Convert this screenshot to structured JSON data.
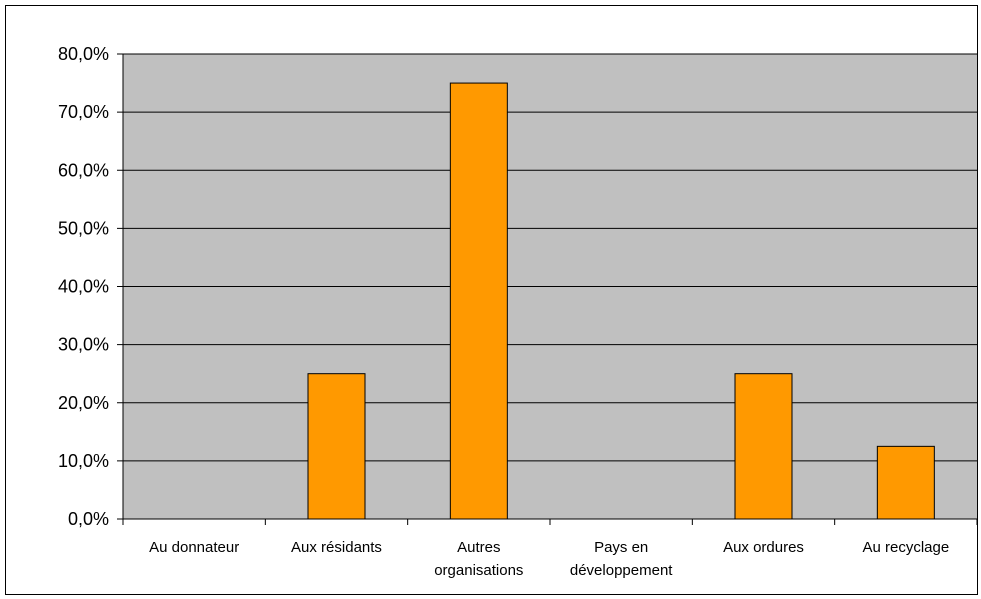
{
  "chart_data": {
    "type": "bar",
    "title": "",
    "xlabel": "",
    "ylabel": "",
    "ylim": [
      0,
      80
    ],
    "y_tick_step": 10,
    "y_tick_labels": [
      "0,0%",
      "10,0%",
      "20,0%",
      "30,0%",
      "40,0%",
      "50,0%",
      "60,0%",
      "70,0%",
      "80,0%"
    ],
    "categories": [
      [
        "Au donnateur"
      ],
      [
        "Aux résidants"
      ],
      [
        "Autres",
        "organisations"
      ],
      [
        "Pays en",
        "développement"
      ],
      [
        "Aux ordures"
      ],
      [
        "Au recyclage"
      ]
    ],
    "values": [
      0,
      25,
      75,
      0,
      25,
      12.5
    ],
    "grid": true,
    "legend": "none",
    "colors": {
      "plot_background": "#c0c0c0",
      "bar_fill": "#ff9900",
      "bar_stroke": "#000000",
      "grid": "#000000"
    }
  }
}
